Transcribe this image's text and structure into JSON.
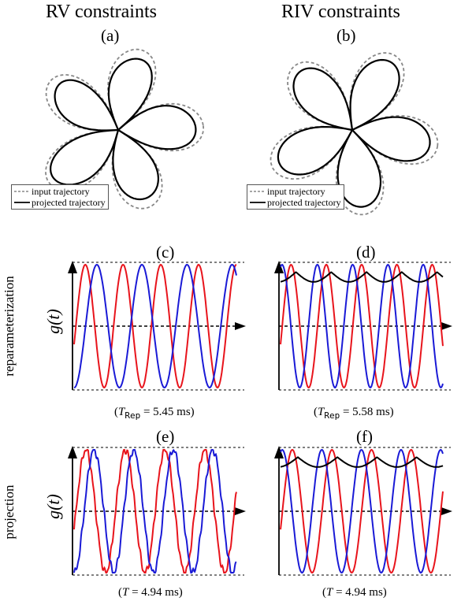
{
  "columns": {
    "left_title": "RV constraints",
    "right_title": "RIV constraints"
  },
  "panels": {
    "a": "(a)",
    "b": "(b)",
    "c": "(c)",
    "d": "(d)",
    "e": "(e)",
    "f": "(f)"
  },
  "row_labels": {
    "top": "reparameterization",
    "bottom": "projection"
  },
  "y_axis_label": "g(t)",
  "legend": {
    "input": "input trajectory",
    "projected": "projected trajectory"
  },
  "captions": {
    "c": {
      "prefix": "(",
      "var": "T",
      "sub": "Rep",
      "value": " = 5.45 ms)"
    },
    "d": {
      "prefix": "(",
      "var": "T",
      "sub": "Rep",
      "value": " = 5.58 ms)"
    },
    "e": {
      "prefix": "(",
      "var": "T",
      "sub": "",
      "value": " = 4.94 ms)"
    },
    "f": {
      "prefix": "(",
      "var": "T",
      "sub": "",
      "value": " = 4.94 ms)"
    }
  },
  "colors": {
    "red": "#e8141c",
    "blue": "#1a1ad6",
    "black": "#000000",
    "dashed_gray": "#888888"
  },
  "chart_data": [
    {
      "panel": "c",
      "type": "line",
      "series_colors": [
        "red",
        "blue"
      ],
      "red_cycles": 4.3,
      "blue_cycles": 3.6,
      "has_envelope": false
    },
    {
      "panel": "d",
      "type": "line",
      "series_colors": [
        "red",
        "blue",
        "black"
      ],
      "red_cycles": 4.6,
      "blue_cycles": 4.6,
      "has_envelope": true
    },
    {
      "panel": "e",
      "type": "line",
      "series_colors": [
        "red",
        "blue"
      ],
      "red_cycles": 4.1,
      "blue_cycles": 4.1,
      "has_envelope": false
    },
    {
      "panel": "f",
      "type": "line",
      "series_colors": [
        "red",
        "blue",
        "black"
      ],
      "red_cycles": 4.1,
      "blue_cycles": 4.1,
      "has_envelope": true
    }
  ]
}
